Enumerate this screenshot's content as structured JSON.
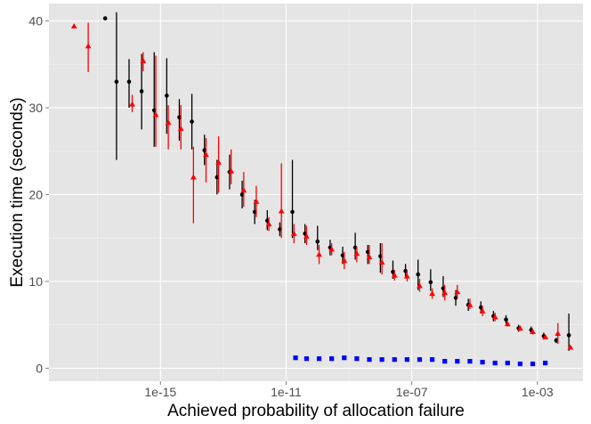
{
  "chart_data": {
    "type": "scatter",
    "title": "",
    "xlabel": "Achieved probability of allocation failure",
    "ylabel": "Execution time (seconds)",
    "x_scale": "log10",
    "xlim_log10": [
      -18.55,
      -1.55
    ],
    "ylim": [
      -1.5,
      42
    ],
    "x_ticks": [
      {
        "value": -15,
        "label": "1e-15"
      },
      {
        "value": -11,
        "label": "1e-11"
      },
      {
        "value": -7,
        "label": "1e-07"
      },
      {
        "value": -3,
        "label": "1e-03"
      }
    ],
    "y_ticks": [
      {
        "value": 0,
        "label": "0"
      },
      {
        "value": 10,
        "label": "10"
      },
      {
        "value": 20,
        "label": "20"
      },
      {
        "value": 30,
        "label": "30"
      },
      {
        "value": 40,
        "label": "40"
      }
    ],
    "grid": true,
    "colors": {
      "panel": "#e5e5e5",
      "grid_major": "#ffffff",
      "grid_minor": "#f2f2f2"
    },
    "series": [
      {
        "name": "black",
        "color": "#000000",
        "marker": "circle",
        "points": [
          {
            "x": -16.76,
            "y": 40.3,
            "lo": null,
            "hi": null
          },
          {
            "x": -16.4,
            "y": 33.0,
            "lo": 24.0,
            "hi": 41.0
          },
          {
            "x": -16.0,
            "y": 33.0,
            "lo": 30.0,
            "hi": 35.6
          },
          {
            "x": -15.6,
            "y": 31.9,
            "lo": 27.5,
            "hi": 36.2
          },
          {
            "x": -15.2,
            "y": 29.7,
            "lo": 25.5,
            "hi": 36.4
          },
          {
            "x": -14.8,
            "y": 31.4,
            "lo": 27.0,
            "hi": 35.7
          },
          {
            "x": -14.4,
            "y": 28.9,
            "lo": 26.2,
            "hi": 31.0
          },
          {
            "x": -14.0,
            "y": 28.4,
            "lo": 25.2,
            "hi": 31.6
          },
          {
            "x": -13.6,
            "y": 25.1,
            "lo": 23.4,
            "hi": 26.9
          },
          {
            "x": -13.2,
            "y": 22.0,
            "lo": 20.0,
            "hi": 24.0
          },
          {
            "x": -12.8,
            "y": 22.6,
            "lo": 20.6,
            "hi": 24.6
          },
          {
            "x": -12.4,
            "y": 20.0,
            "lo": 18.4,
            "hi": 21.6
          },
          {
            "x": -12.0,
            "y": 18.0,
            "lo": 16.6,
            "hi": 19.4
          },
          {
            "x": -11.6,
            "y": 17.0,
            "lo": 15.9,
            "hi": 18.2
          },
          {
            "x": -11.2,
            "y": 16.0,
            "lo": 15.2,
            "hi": 16.8
          },
          {
            "x": -10.8,
            "y": 18.0,
            "lo": 15.0,
            "hi": 24.0
          },
          {
            "x": -10.4,
            "y": 15.5,
            "lo": 14.4,
            "hi": 16.6
          },
          {
            "x": -10.0,
            "y": 14.6,
            "lo": 13.6,
            "hi": 16.4
          },
          {
            "x": -9.6,
            "y": 13.9,
            "lo": 13.0,
            "hi": 14.8
          },
          {
            "x": -9.2,
            "y": 13.0,
            "lo": 12.0,
            "hi": 14.0
          },
          {
            "x": -8.8,
            "y": 13.9,
            "lo": 12.5,
            "hi": 15.6
          },
          {
            "x": -8.4,
            "y": 13.4,
            "lo": 12.0,
            "hi": 14.2
          },
          {
            "x": -8.0,
            "y": 12.9,
            "lo": 11.0,
            "hi": 14.4
          },
          {
            "x": -7.6,
            "y": 11.1,
            "lo": 10.3,
            "hi": 12.4
          },
          {
            "x": -7.2,
            "y": 11.2,
            "lo": 10.5,
            "hi": 12.0
          },
          {
            "x": -6.8,
            "y": 10.8,
            "lo": 9.0,
            "hi": 12.5
          },
          {
            "x": -6.4,
            "y": 9.9,
            "lo": 8.9,
            "hi": 11.4
          },
          {
            "x": -6.0,
            "y": 9.2,
            "lo": 8.2,
            "hi": 10.6
          },
          {
            "x": -5.6,
            "y": 8.1,
            "lo": 7.2,
            "hi": 9.0
          },
          {
            "x": -5.2,
            "y": 7.3,
            "lo": 6.6,
            "hi": 8.0
          },
          {
            "x": -4.8,
            "y": 7.0,
            "lo": 6.3,
            "hi": 7.7
          },
          {
            "x": -4.4,
            "y": 6.0,
            "lo": 5.4,
            "hi": 6.6
          },
          {
            "x": -4.0,
            "y": 5.6,
            "lo": 5.1,
            "hi": 6.1
          },
          {
            "x": -3.6,
            "y": 4.6,
            "lo": 4.2,
            "hi": 5.0
          },
          {
            "x": -3.2,
            "y": 4.4,
            "lo": 4.0,
            "hi": 4.8
          },
          {
            "x": -2.8,
            "y": 3.7,
            "lo": 3.3,
            "hi": 4.1
          },
          {
            "x": -2.4,
            "y": 3.2,
            "lo": 2.9,
            "hi": 3.5
          },
          {
            "x": -2.0,
            "y": 3.8,
            "lo": 2.0,
            "hi": 6.3
          }
        ]
      },
      {
        "name": "red",
        "color": "#ff0000",
        "marker": "triangle",
        "points": [
          {
            "x": -17.75,
            "y": 39.4,
            "lo": null,
            "hi": null
          },
          {
            "x": -17.3,
            "y": 37.1,
            "lo": 34.1,
            "hi": 39.8
          },
          {
            "x": -15.9,
            "y": 30.4,
            "lo": 29.5,
            "hi": 31.5
          },
          {
            "x": -15.55,
            "y": 35.4,
            "lo": 34.2,
            "hi": 36.4
          },
          {
            "x": -15.15,
            "y": 29.2,
            "lo": 25.5,
            "hi": 36.0
          },
          {
            "x": -14.75,
            "y": 28.3,
            "lo": 25.2,
            "hi": 30.3
          },
          {
            "x": -14.35,
            "y": 27.6,
            "lo": 25.2,
            "hi": 30.3
          },
          {
            "x": -13.95,
            "y": 22.0,
            "lo": 16.7,
            "hi": 25.5
          },
          {
            "x": -13.55,
            "y": 24.6,
            "lo": 21.4,
            "hi": 26.5
          },
          {
            "x": -13.15,
            "y": 23.7,
            "lo": 20.2,
            "hi": 26.7
          },
          {
            "x": -12.75,
            "y": 22.7,
            "lo": 21.2,
            "hi": 25.2
          },
          {
            "x": -12.35,
            "y": 20.5,
            "lo": 18.6,
            "hi": 22.6
          },
          {
            "x": -11.95,
            "y": 19.2,
            "lo": 17.4,
            "hi": 21.0
          },
          {
            "x": -11.55,
            "y": 16.6,
            "lo": 15.8,
            "hi": 17.4
          },
          {
            "x": -11.15,
            "y": 18.1,
            "lo": 15.0,
            "hi": 23.6
          },
          {
            "x": -10.75,
            "y": 15.5,
            "lo": 14.4,
            "hi": 16.6
          },
          {
            "x": -10.35,
            "y": 15.2,
            "lo": 14.2,
            "hi": 16.4
          },
          {
            "x": -9.95,
            "y": 13.1,
            "lo": 12.0,
            "hi": 14.2
          },
          {
            "x": -9.55,
            "y": 13.7,
            "lo": 13.0,
            "hi": 14.4
          },
          {
            "x": -9.15,
            "y": 12.4,
            "lo": 11.4,
            "hi": 13.4
          },
          {
            "x": -8.75,
            "y": 13.2,
            "lo": 12.2,
            "hi": 14.0
          },
          {
            "x": -8.35,
            "y": 12.8,
            "lo": 12.0,
            "hi": 14.2
          },
          {
            "x": -7.95,
            "y": 12.2,
            "lo": 10.8,
            "hi": 14.4
          },
          {
            "x": -7.55,
            "y": 10.7,
            "lo": 10.1,
            "hi": 11.3
          },
          {
            "x": -7.15,
            "y": 10.6,
            "lo": 10.0,
            "hi": 11.3
          },
          {
            "x": -6.75,
            "y": 9.5,
            "lo": 8.8,
            "hi": 10.3
          },
          {
            "x": -6.35,
            "y": 8.6,
            "lo": 8.0,
            "hi": 9.2
          },
          {
            "x": -5.95,
            "y": 8.7,
            "lo": 7.8,
            "hi": 9.6
          },
          {
            "x": -5.55,
            "y": 8.8,
            "lo": 8.0,
            "hi": 9.6
          },
          {
            "x": -5.15,
            "y": 7.3,
            "lo": 6.8,
            "hi": 8.0
          },
          {
            "x": -4.75,
            "y": 6.6,
            "lo": 6.0,
            "hi": 7.2
          },
          {
            "x": -4.35,
            "y": 5.9,
            "lo": 5.4,
            "hi": 6.4
          },
          {
            "x": -3.95,
            "y": 5.1,
            "lo": 4.8,
            "hi": 5.4
          },
          {
            "x": -3.55,
            "y": 4.6,
            "lo": 4.3,
            "hi": 4.9
          },
          {
            "x": -3.15,
            "y": 4.2,
            "lo": 3.9,
            "hi": 4.5
          },
          {
            "x": -2.75,
            "y": 3.6,
            "lo": 3.4,
            "hi": 3.8
          },
          {
            "x": -2.35,
            "y": 4.0,
            "lo": 2.8,
            "hi": 5.2
          },
          {
            "x": -1.95,
            "y": 2.4,
            "lo": 2.2,
            "hi": 2.6
          }
        ]
      },
      {
        "name": "blue",
        "color": "#0000ff",
        "marker": "square",
        "points": [
          {
            "x": -10.7,
            "y": 1.2
          },
          {
            "x": -10.35,
            "y": 1.1
          },
          {
            "x": -9.95,
            "y": 1.1
          },
          {
            "x": -9.55,
            "y": 1.1
          },
          {
            "x": -9.15,
            "y": 1.2
          },
          {
            "x": -8.75,
            "y": 1.1
          },
          {
            "x": -8.35,
            "y": 1.0
          },
          {
            "x": -7.95,
            "y": 1.0
          },
          {
            "x": -7.55,
            "y": 1.0
          },
          {
            "x": -7.15,
            "y": 1.0
          },
          {
            "x": -6.75,
            "y": 1.0
          },
          {
            "x": -6.35,
            "y": 1.0
          },
          {
            "x": -5.95,
            "y": 0.8
          },
          {
            "x": -5.55,
            "y": 0.8
          },
          {
            "x": -5.15,
            "y": 0.8
          },
          {
            "x": -4.75,
            "y": 0.7
          },
          {
            "x": -4.35,
            "y": 0.6
          },
          {
            "x": -3.95,
            "y": 0.6
          },
          {
            "x": -3.55,
            "y": 0.5
          },
          {
            "x": -3.15,
            "y": 0.5
          },
          {
            "x": -2.75,
            "y": 0.6
          }
        ]
      }
    ]
  }
}
